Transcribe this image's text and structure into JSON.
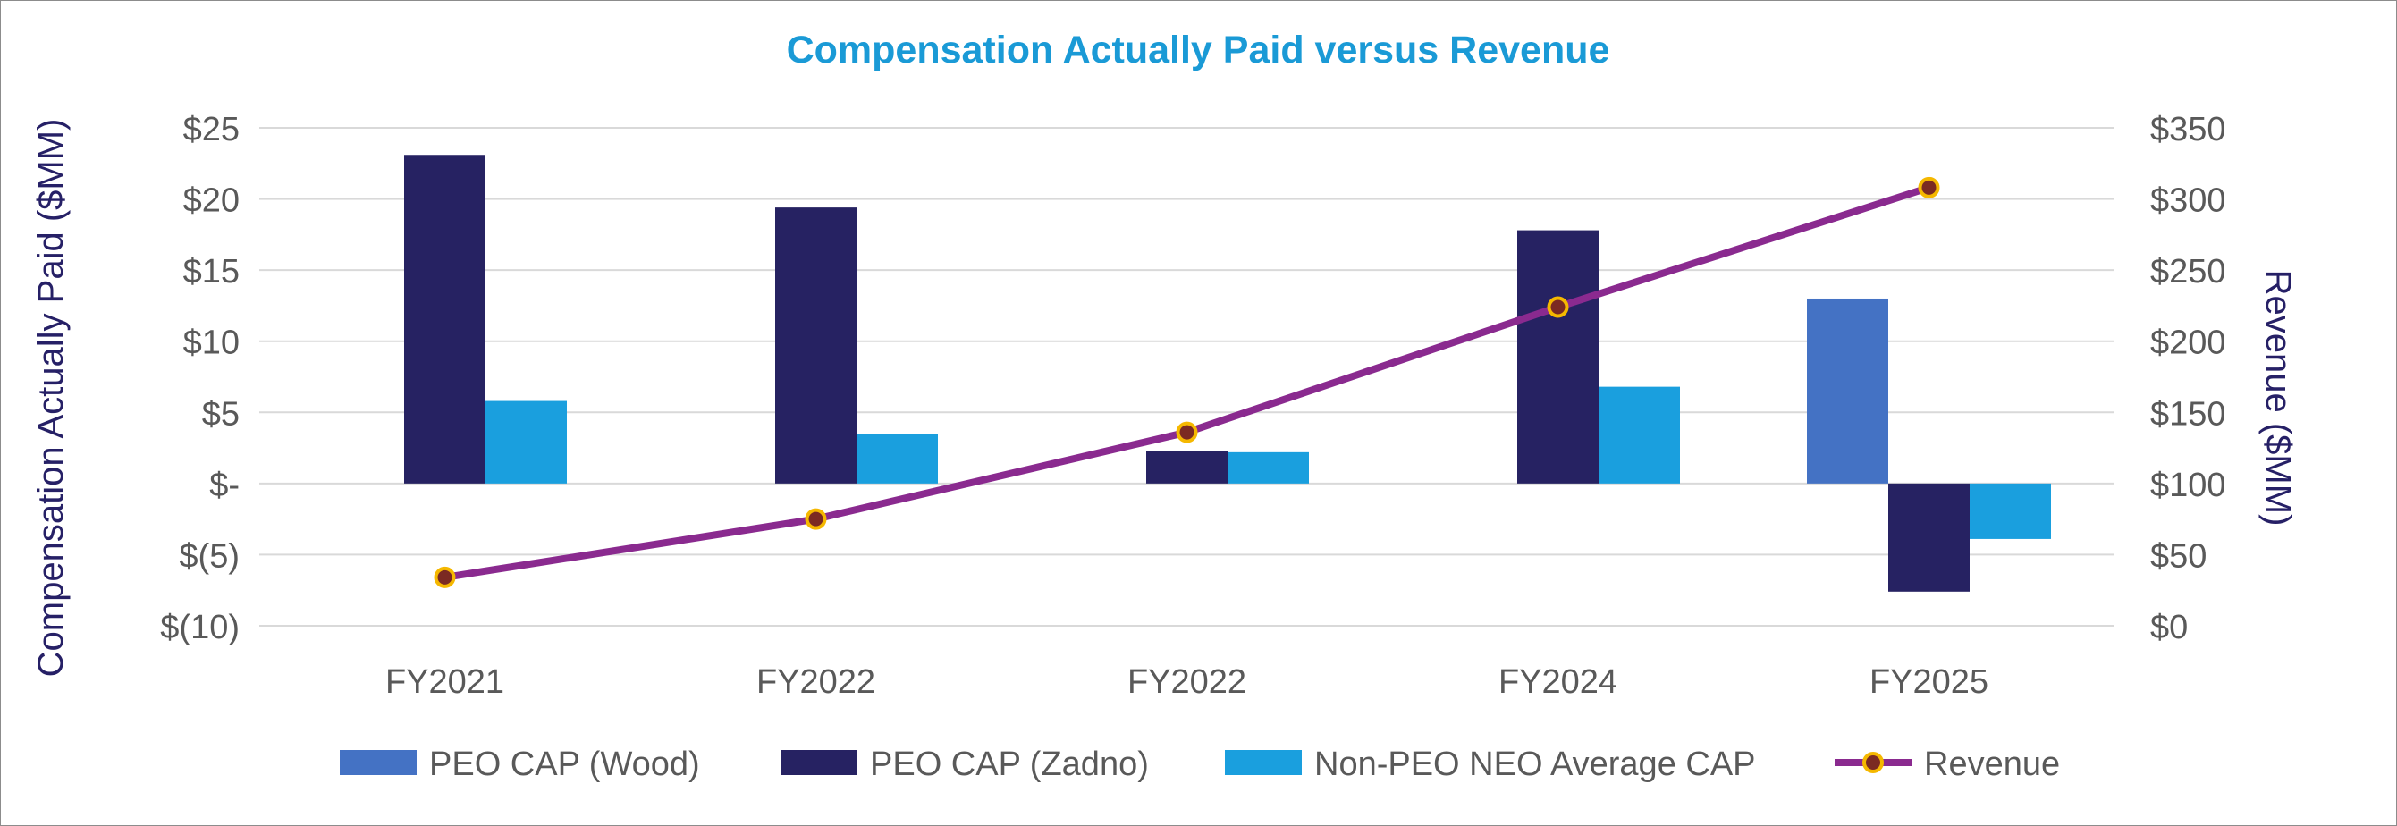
{
  "colors": {
    "title": "#1a9ad6",
    "axis_title": "#262066",
    "tick": "#595959",
    "grid": "#d9d9d9",
    "wood": "#4472c4",
    "zadno": "#262262",
    "non_peo": "#1a9fde",
    "revenue_line": "#8a2a8f",
    "revenue_marker_fill": "#7b2a22",
    "revenue_marker_stroke": "#f5b800"
  },
  "chart_data": {
    "type": "bar",
    "title": "Compensation Actually Paid versus Revenue",
    "categories": [
      "FY2021",
      "FY2022",
      "FY2022",
      "FY2024",
      "FY2025"
    ],
    "ylabel": "Compensation Actually Paid ($MM)",
    "ylabel_right": "Revenue ($MM)",
    "ylim": [
      -10,
      25
    ],
    "ylim_right": [
      0,
      350
    ],
    "yticks": [
      {
        "value": 25,
        "label": "$25"
      },
      {
        "value": 20,
        "label": "$20"
      },
      {
        "value": 15,
        "label": "$15"
      },
      {
        "value": 10,
        "label": "$10"
      },
      {
        "value": 5,
        "label": "$5"
      },
      {
        "value": 0,
        "label": "$-"
      },
      {
        "value": -5,
        "label": "$(5)"
      },
      {
        "value": -10,
        "label": "$(10)"
      }
    ],
    "yticks_right": [
      {
        "value": 350,
        "label": "$350"
      },
      {
        "value": 300,
        "label": "$300"
      },
      {
        "value": 250,
        "label": "$250"
      },
      {
        "value": 200,
        "label": "$200"
      },
      {
        "value": 150,
        "label": "$150"
      },
      {
        "value": 100,
        "label": "$100"
      },
      {
        "value": 50,
        "label": "$50"
      },
      {
        "value": 0,
        "label": "$0"
      }
    ],
    "grid": true,
    "legend_position": "bottom",
    "series": [
      {
        "name": "PEO CAP (Wood)",
        "kind": "bar",
        "axis": "left",
        "color_key": "wood",
        "values": [
          null,
          null,
          null,
          null,
          13.0
        ]
      },
      {
        "name": "PEO CAP (Zadno)",
        "kind": "bar",
        "axis": "left",
        "color_key": "zadno",
        "values": [
          23.1,
          19.4,
          2.3,
          17.8,
          -7.6
        ]
      },
      {
        "name": "Non-PEO NEO Average CAP",
        "kind": "bar",
        "axis": "left",
        "color_key": "non_peo",
        "values": [
          5.8,
          3.5,
          2.2,
          6.8,
          -3.9
        ]
      },
      {
        "name": "Revenue",
        "kind": "line",
        "axis": "right",
        "color_key": "revenue_line",
        "values": [
          34,
          75,
          136,
          224,
          308
        ]
      }
    ]
  }
}
